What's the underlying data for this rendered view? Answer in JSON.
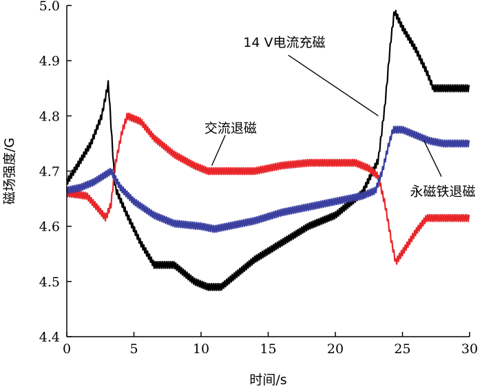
{
  "chart_data": {
    "type": "line",
    "title": "",
    "xlabel": "时间/s",
    "ylabel": "磁场强度/G",
    "xlim": [
      0,
      30
    ],
    "ylim": [
      4.4,
      5.0
    ],
    "xticks": [
      "0",
      "5",
      "10",
      "15",
      "20",
      "25",
      "30"
    ],
    "yticks": [
      "4.4",
      "4.5",
      "4.6",
      "4.7",
      "4.8",
      "4.9",
      "5.0"
    ],
    "grid": false,
    "legend": "none",
    "series": [
      {
        "name": "14 V电流充磁",
        "color": "#000000",
        "noise": 0.012,
        "points": [
          [
            0,
            4.68
          ],
          [
            0.8,
            4.71
          ],
          [
            1.8,
            4.75
          ],
          [
            2.6,
            4.8
          ],
          [
            3.1,
            4.86
          ],
          [
            3.3,
            4.78
          ],
          [
            3.6,
            4.67
          ],
          [
            4.5,
            4.62
          ],
          [
            5.5,
            4.57
          ],
          [
            6.5,
            4.53
          ],
          [
            8,
            4.53
          ],
          [
            9.5,
            4.5
          ],
          [
            10.5,
            4.49
          ],
          [
            11.5,
            4.49
          ],
          [
            12.5,
            4.51
          ],
          [
            14,
            4.54
          ],
          [
            16,
            4.57
          ],
          [
            18,
            4.6
          ],
          [
            20,
            4.62
          ],
          [
            22,
            4.66
          ],
          [
            23.2,
            4.72
          ],
          [
            23.7,
            4.82
          ],
          [
            24.1,
            4.93
          ],
          [
            24.4,
            4.99
          ],
          [
            25,
            4.96
          ],
          [
            26,
            4.92
          ],
          [
            26.8,
            4.88
          ],
          [
            27.3,
            4.85
          ],
          [
            30,
            4.85
          ]
        ]
      },
      {
        "name": "交流退磁",
        "color": "#e8262a",
        "noise": 0.012,
        "points": [
          [
            0,
            4.66
          ],
          [
            1.5,
            4.655
          ],
          [
            2.4,
            4.63
          ],
          [
            2.9,
            4.615
          ],
          [
            3.3,
            4.64
          ],
          [
            3.6,
            4.71
          ],
          [
            4.1,
            4.77
          ],
          [
            4.5,
            4.8
          ],
          [
            5.5,
            4.79
          ],
          [
            6.5,
            4.76
          ],
          [
            8,
            4.73
          ],
          [
            9.5,
            4.71
          ],
          [
            10.5,
            4.7
          ],
          [
            12,
            4.7
          ],
          [
            14,
            4.7
          ],
          [
            16,
            4.71
          ],
          [
            18,
            4.715
          ],
          [
            20,
            4.715
          ],
          [
            21.5,
            4.715
          ],
          [
            22.5,
            4.705
          ],
          [
            23.2,
            4.69
          ],
          [
            23.7,
            4.64
          ],
          [
            24.2,
            4.57
          ],
          [
            24.5,
            4.535
          ],
          [
            25.2,
            4.56
          ],
          [
            26,
            4.59
          ],
          [
            26.8,
            4.615
          ],
          [
            27.5,
            4.615
          ],
          [
            30,
            4.615
          ]
        ]
      },
      {
        "name": "永磁铁退磁",
        "color": "#3a3fa0",
        "noise": 0.012,
        "points": [
          [
            0,
            4.665
          ],
          [
            1,
            4.67
          ],
          [
            2,
            4.68
          ],
          [
            3.3,
            4.7
          ],
          [
            4,
            4.67
          ],
          [
            5,
            4.645
          ],
          [
            6.5,
            4.62
          ],
          [
            8,
            4.605
          ],
          [
            10,
            4.6
          ],
          [
            11,
            4.595
          ],
          [
            12,
            4.6
          ],
          [
            14,
            4.61
          ],
          [
            16,
            4.625
          ],
          [
            18,
            4.635
          ],
          [
            20,
            4.645
          ],
          [
            22,
            4.655
          ],
          [
            23,
            4.665
          ],
          [
            23.5,
            4.7
          ],
          [
            24,
            4.75
          ],
          [
            24.3,
            4.775
          ],
          [
            25,
            4.775
          ],
          [
            26,
            4.765
          ],
          [
            27,
            4.755
          ],
          [
            28,
            4.75
          ],
          [
            30,
            4.75
          ]
        ]
      }
    ],
    "annotations": [
      {
        "text": "14 V电流充磁",
        "series": 0,
        "from": [
          16.5,
          4.91
        ],
        "to": [
          23.2,
          4.8
        ]
      },
      {
        "text": "交流退磁",
        "series": 1,
        "from": [
          11.8,
          4.765
        ],
        "to": [
          10.8,
          4.71
        ]
      },
      {
        "text": "永磁铁退磁",
        "series": 2,
        "from": [
          27.9,
          4.69
        ],
        "to": [
          26.6,
          4.755
        ]
      }
    ]
  }
}
